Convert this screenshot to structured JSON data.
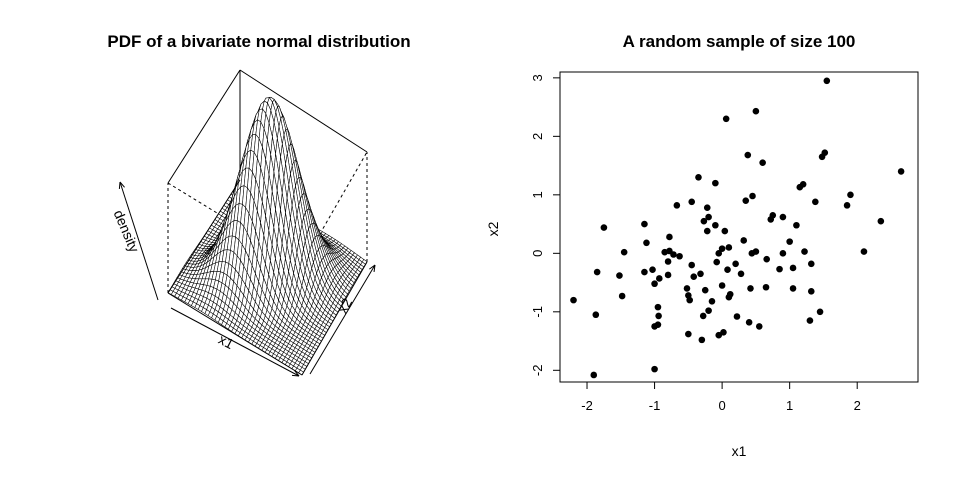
{
  "chart_data": [
    {
      "type": "surface",
      "title": "PDF of a bivariate normal distribution",
      "axes": {
        "x": "x1",
        "y": "x2",
        "z": "density"
      },
      "grid_size": 40,
      "x_range": [
        -3,
        3
      ],
      "y_range": [
        -3,
        3
      ],
      "correlation": 0.5
    },
    {
      "type": "scatter",
      "title": "A random sample of size 100",
      "xlabel": "x1",
      "ylabel": "x2",
      "xlim": [
        -2.4,
        2.9
      ],
      "ylim": [
        -2.2,
        3.1
      ],
      "xticks": [
        "-2",
        "-1",
        "0",
        "1",
        "2"
      ],
      "yticks": [
        "-2",
        "-1",
        "0",
        "1",
        "2",
        "3"
      ],
      "grid": false,
      "points": [
        [
          -2.2,
          -0.8
        ],
        [
          -1.9,
          -2.08
        ],
        [
          -1.87,
          -1.05
        ],
        [
          -1.85,
          -0.32
        ],
        [
          -1.75,
          0.44
        ],
        [
          -1.52,
          -0.38
        ],
        [
          -1.48,
          -0.73
        ],
        [
          -1.45,
          0.02
        ],
        [
          -1.15,
          0.5
        ],
        [
          -1.15,
          -0.32
        ],
        [
          -1.12,
          0.18
        ],
        [
          -1.03,
          -0.28
        ],
        [
          -1.0,
          -0.52
        ],
        [
          -1.0,
          -1.98
        ],
        [
          -1.0,
          -1.25
        ],
        [
          -0.95,
          -1.22
        ],
        [
          -0.95,
          -0.92
        ],
        [
          -0.94,
          -1.07
        ],
        [
          -0.93,
          -0.43
        ],
        [
          -0.85,
          0.02
        ],
        [
          -0.8,
          -0.14
        ],
        [
          -0.8,
          -0.37
        ],
        [
          -0.78,
          0.04
        ],
        [
          -0.78,
          0.28
        ],
        [
          -0.72,
          -0.02
        ],
        [
          -0.67,
          0.82
        ],
        [
          -0.63,
          -0.05
        ],
        [
          -0.52,
          -0.6
        ],
        [
          -0.5,
          -0.72
        ],
        [
          -0.5,
          -1.38
        ],
        [
          -0.48,
          -0.8
        ],
        [
          -0.45,
          0.88
        ],
        [
          -0.45,
          -0.2
        ],
        [
          -0.42,
          -0.4
        ],
        [
          -0.35,
          1.3
        ],
        [
          -0.32,
          -0.35
        ],
        [
          -0.3,
          -1.48
        ],
        [
          -0.28,
          -1.07
        ],
        [
          -0.27,
          0.55
        ],
        [
          -0.25,
          -0.63
        ],
        [
          -0.22,
          0.78
        ],
        [
          -0.22,
          0.38
        ],
        [
          -0.2,
          0.62
        ],
        [
          -0.2,
          -0.98
        ],
        [
          -0.15,
          -0.82
        ],
        [
          -0.1,
          1.2
        ],
        [
          -0.1,
          0.48
        ],
        [
          -0.08,
          -0.15
        ],
        [
          -0.05,
          0.0
        ],
        [
          -0.05,
          -1.4
        ],
        [
          0.0,
          -0.55
        ],
        [
          0.0,
          0.08
        ],
        [
          0.02,
          -1.35
        ],
        [
          0.04,
          0.38
        ],
        [
          0.06,
          2.3
        ],
        [
          0.08,
          -0.28
        ],
        [
          0.1,
          0.1
        ],
        [
          0.1,
          -0.75
        ],
        [
          0.12,
          -0.7
        ],
        [
          0.2,
          -0.18
        ],
        [
          0.22,
          -1.08
        ],
        [
          0.28,
          -0.35
        ],
        [
          0.32,
          0.22
        ],
        [
          0.35,
          0.9
        ],
        [
          0.38,
          1.68
        ],
        [
          0.4,
          -1.18
        ],
        [
          0.42,
          -0.6
        ],
        [
          0.44,
          0.0
        ],
        [
          0.45,
          0.98
        ],
        [
          0.5,
          2.43
        ],
        [
          0.5,
          0.03
        ],
        [
          0.55,
          -1.25
        ],
        [
          0.6,
          1.55
        ],
        [
          0.65,
          -0.58
        ],
        [
          0.66,
          -0.1
        ],
        [
          0.72,
          0.58
        ],
        [
          0.75,
          0.65
        ],
        [
          0.85,
          -0.27
        ],
        [
          0.9,
          0.0
        ],
        [
          0.9,
          0.62
        ],
        [
          1.05,
          -0.6
        ],
        [
          1.05,
          -0.25
        ],
        [
          1.1,
          0.48
        ],
        [
          1.15,
          1.13
        ],
        [
          1.2,
          1.18
        ],
        [
          1.22,
          0.03
        ],
        [
          1.3,
          -1.15
        ],
        [
          1.32,
          -0.65
        ],
        [
          1.32,
          -0.18
        ],
        [
          1.38,
          0.88
        ],
        [
          1.45,
          -1.0
        ],
        [
          1.48,
          1.65
        ],
        [
          1.52,
          1.72
        ],
        [
          1.55,
          2.95
        ],
        [
          1.85,
          0.82
        ],
        [
          1.9,
          1.0
        ],
        [
          2.1,
          0.03
        ],
        [
          2.35,
          0.55
        ],
        [
          2.65,
          1.4
        ],
        [
          1.0,
          0.2
        ]
      ]
    }
  ]
}
